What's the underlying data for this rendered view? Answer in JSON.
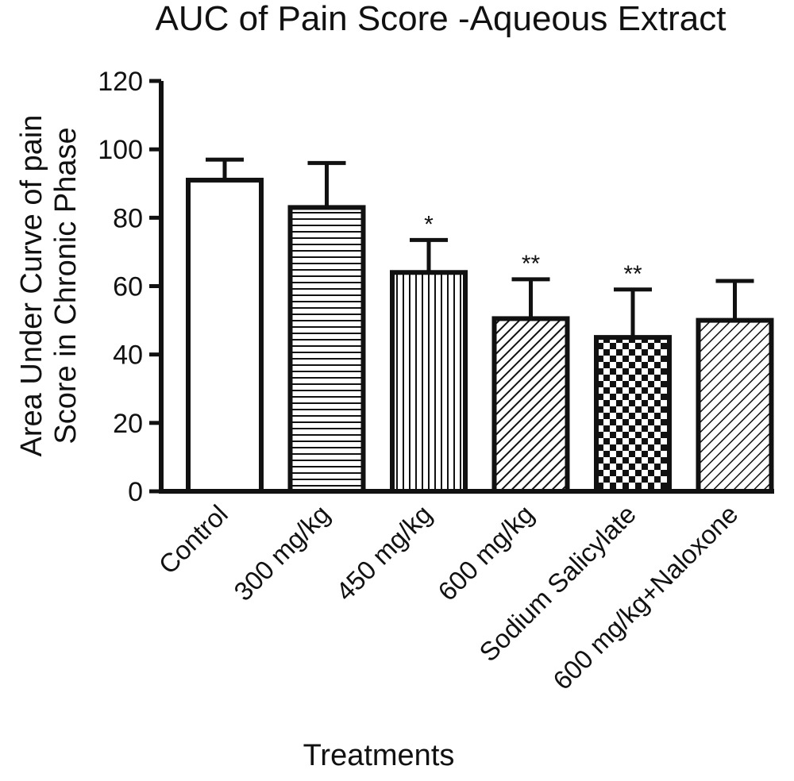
{
  "chart_data": {
    "type": "bar",
    "title": "AUC of Pain Score -Aqueous Extract",
    "xlabel": "Treatments",
    "ylabel_lines": [
      "Area Under Curve of pain",
      "Score in Chronic Phase"
    ],
    "ylim": [
      0,
      120
    ],
    "yticks": [
      0,
      20,
      40,
      60,
      80,
      100,
      120
    ],
    "categories": [
      "Control",
      "300 mg/kg",
      "450 mg/kg",
      "600 mg/kg",
      "Sodium Salicylate",
      "600 mg/kg+Naloxone"
    ],
    "values": [
      91,
      83,
      64,
      50.5,
      45,
      50
    ],
    "error_upper": [
      97,
      96,
      73.5,
      62,
      59,
      61.5
    ],
    "significance": [
      "",
      "",
      "*",
      "**",
      "**",
      ""
    ],
    "patterns": [
      "solid-white",
      "horizontal-lines",
      "vertical-lines",
      "diagonal-lines",
      "checkerboard",
      "diagonal-lines-reverse"
    ],
    "grid": false,
    "legend": "none"
  }
}
